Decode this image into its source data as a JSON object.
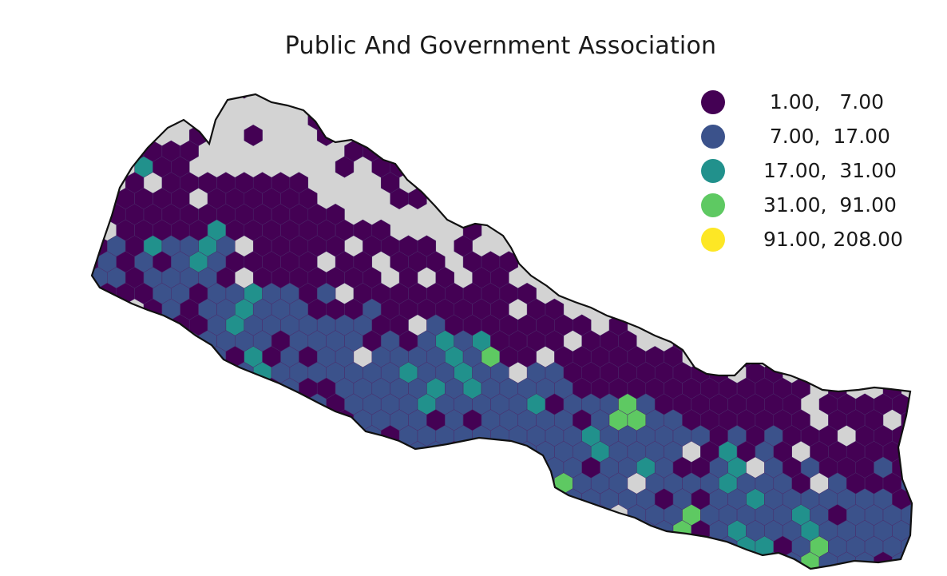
{
  "title": "Public And Government Association",
  "colors": {
    "background": "#d3d3d3",
    "outline": "#111111",
    "hex_edge": "#4a2a6a"
  },
  "legend": [
    {
      "label": "  1.00,   7.00",
      "color": "#440154"
    },
    {
      "label": "  7.00,  17.00",
      "color": "#3b528b"
    },
    {
      "label": " 17.00,  31.00",
      "color": "#21918c"
    },
    {
      "label": " 31.00,  91.00",
      "color": "#5ec962"
    },
    {
      "label": " 91.00, 208.00",
      "color": "#fde725"
    }
  ],
  "features": {
    "max_value_cell": "91.00, 208.00"
  }
}
